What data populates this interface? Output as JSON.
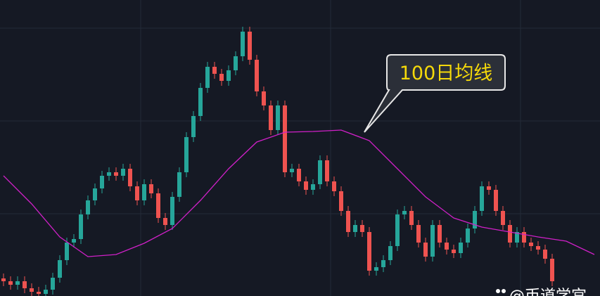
{
  "chart_data": {
    "type": "candlestick",
    "annotation": "100日均线",
    "watermark": "@币道学宫",
    "up_color": "#26a69a",
    "down_color": "#ef5350",
    "xlim": [
      -0.5,
      84.8
    ],
    "ylim": [
      0,
      421
    ],
    "open": [
      25,
      21,
      16,
      21,
      11,
      6,
      3,
      9,
      26,
      51,
      76,
      81,
      116,
      136,
      153,
      171,
      176,
      171,
      181,
      156,
      136,
      159,
      146,
      111,
      101,
      141,
      176,
      226,
      256,
      296,
      326,
      316,
      306,
      321,
      341,
      376,
      336,
      291,
      271,
      236,
      271,
      176,
      181,
      163,
      151,
      159,
      193,
      163,
      149,
      121,
      91,
      101,
      91,
      36,
      41,
      51,
      71,
      116,
      121,
      101,
      76,
      56,
      101,
      76,
      66,
      61,
      76,
      96,
      121,
      156,
      151,
      121,
      101,
      76,
      91,
      76,
      71,
      66,
      53
    ],
    "high": [
      32,
      28,
      28,
      28,
      18,
      13,
      16,
      33,
      58,
      83,
      88,
      123,
      143,
      160,
      178,
      183,
      183,
      188,
      188,
      163,
      166,
      166,
      153,
      118,
      148,
      183,
      233,
      263,
      303,
      333,
      333,
      323,
      328,
      348,
      383,
      383,
      343,
      298,
      278,
      278,
      278,
      188,
      188,
      170,
      166,
      200,
      200,
      170,
      156,
      128,
      108,
      108,
      98,
      48,
      58,
      78,
      123,
      128,
      128,
      108,
      83,
      108,
      108,
      83,
      73,
      83,
      103,
      128,
      163,
      163,
      158,
      128,
      108,
      98,
      98,
      83,
      78,
      73,
      60
    ],
    "low": [
      14,
      9,
      9,
      4,
      -1,
      -4,
      -4,
      2,
      19,
      44,
      69,
      74,
      109,
      129,
      146,
      164,
      164,
      164,
      149,
      129,
      129,
      139,
      104,
      94,
      94,
      134,
      169,
      219,
      249,
      289,
      309,
      299,
      299,
      314,
      334,
      329,
      284,
      264,
      229,
      229,
      169,
      169,
      156,
      144,
      144,
      152,
      156,
      142,
      114,
      84,
      84,
      84,
      29,
      29,
      34,
      44,
      64,
      109,
      94,
      69,
      49,
      49,
      69,
      59,
      54,
      54,
      69,
      89,
      114,
      144,
      114,
      94,
      69,
      69,
      69,
      64,
      59,
      46,
      14
    ],
    "close": [
      21,
      16,
      21,
      11,
      6,
      3,
      9,
      26,
      51,
      76,
      81,
      116,
      136,
      153,
      171,
      176,
      171,
      181,
      156,
      136,
      159,
      146,
      111,
      101,
      141,
      176,
      226,
      256,
      296,
      326,
      316,
      306,
      321,
      341,
      376,
      336,
      291,
      271,
      236,
      271,
      176,
      181,
      163,
      151,
      159,
      193,
      163,
      149,
      121,
      91,
      101,
      91,
      36,
      41,
      51,
      71,
      116,
      121,
      101,
      76,
      56,
      101,
      76,
      66,
      61,
      76,
      96,
      121,
      156,
      151,
      121,
      101,
      76,
      91,
      76,
      71,
      66,
      53,
      21
    ],
    "ma": {
      "color": "#d020c8",
      "x": [
        0,
        4,
        8,
        12,
        16,
        20,
        24,
        28,
        32,
        36,
        40,
        44,
        48,
        52,
        56,
        60,
        64,
        68,
        72,
        76,
        80,
        84
      ],
      "values": [
        171,
        131,
        84,
        56,
        59,
        75,
        96,
        136,
        181,
        219,
        233,
        234,
        236,
        221,
        181,
        141,
        111,
        98,
        91,
        84,
        78,
        59
      ]
    }
  }
}
